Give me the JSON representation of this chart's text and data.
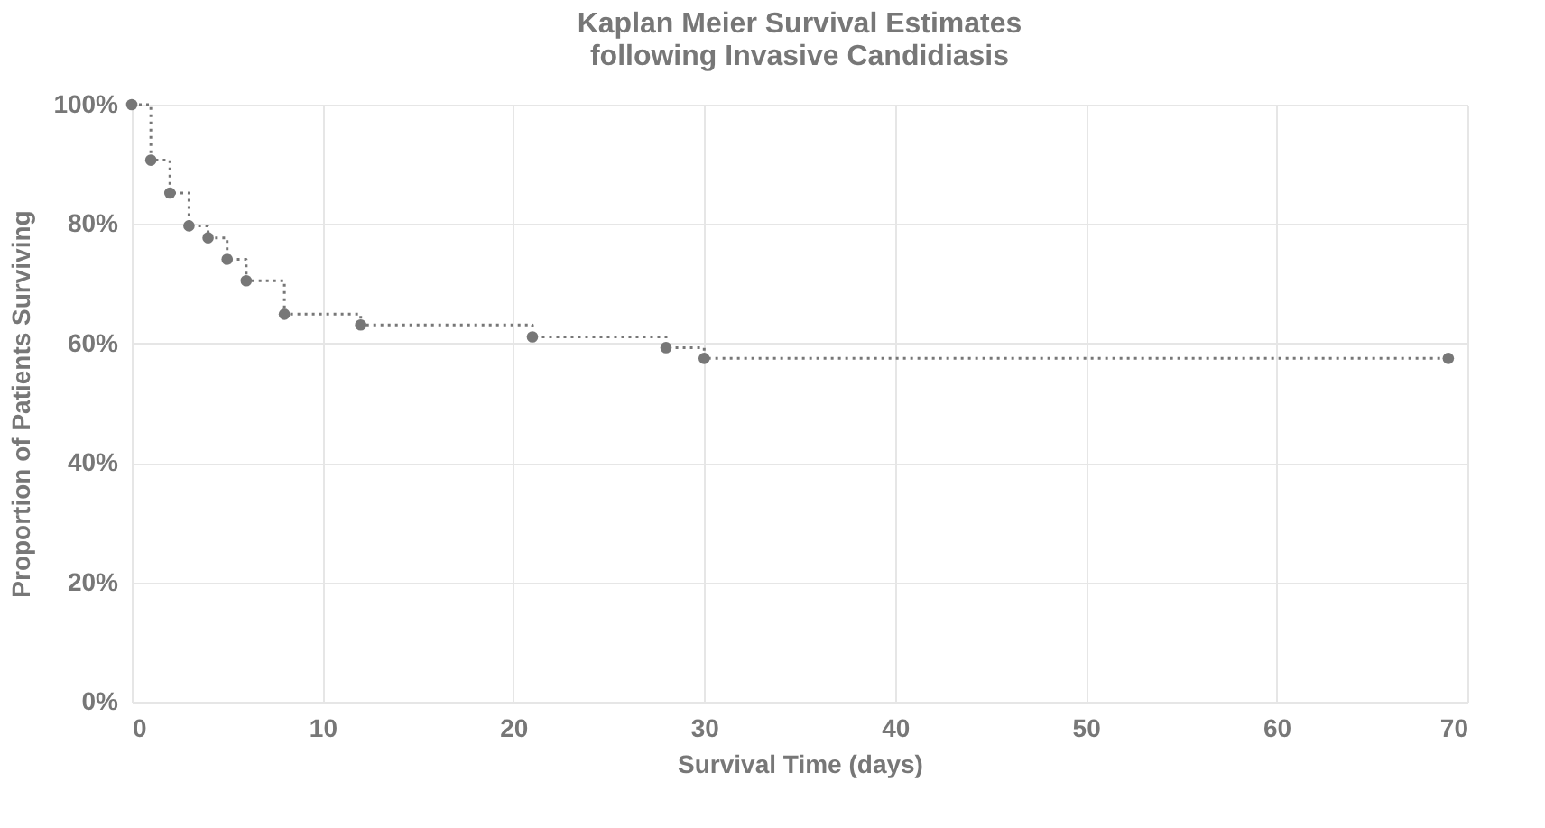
{
  "chart_data": {
    "type": "step",
    "title": [
      "Kaplan Meier Survival Estimates",
      "following Invasive Candidiasis"
    ],
    "xlabel": "Survival Time (days)",
    "ylabel": "Proportion of Patients Surviving",
    "x": [
      0,
      1,
      2,
      3,
      4,
      5,
      6,
      8,
      12,
      21,
      28,
      30,
      69
    ],
    "series": [
      {
        "color": "#777777",
        "values": [
          100,
          90.7,
          85.2,
          79.7,
          77.7,
          74.1,
          70.5,
          64.9,
          63.1,
          61.1,
          59.3,
          57.5,
          57.5
        ]
      }
    ],
    "xlim": [
      0,
      70
    ],
    "xticks": [
      0,
      10,
      20,
      30,
      40,
      50,
      60,
      70
    ],
    "ylim": [
      0,
      100
    ],
    "yticks": [
      {
        "value": 0,
        "label": "0%"
      },
      {
        "value": 20,
        "label": "20%"
      },
      {
        "value": 40,
        "label": "40%"
      },
      {
        "value": 60,
        "label": "60%"
      },
      {
        "value": 80,
        "label": "80%"
      },
      {
        "value": 100,
        "label": "100%"
      }
    ],
    "grid": true,
    "marker": "circle",
    "line_style": "dotted"
  }
}
